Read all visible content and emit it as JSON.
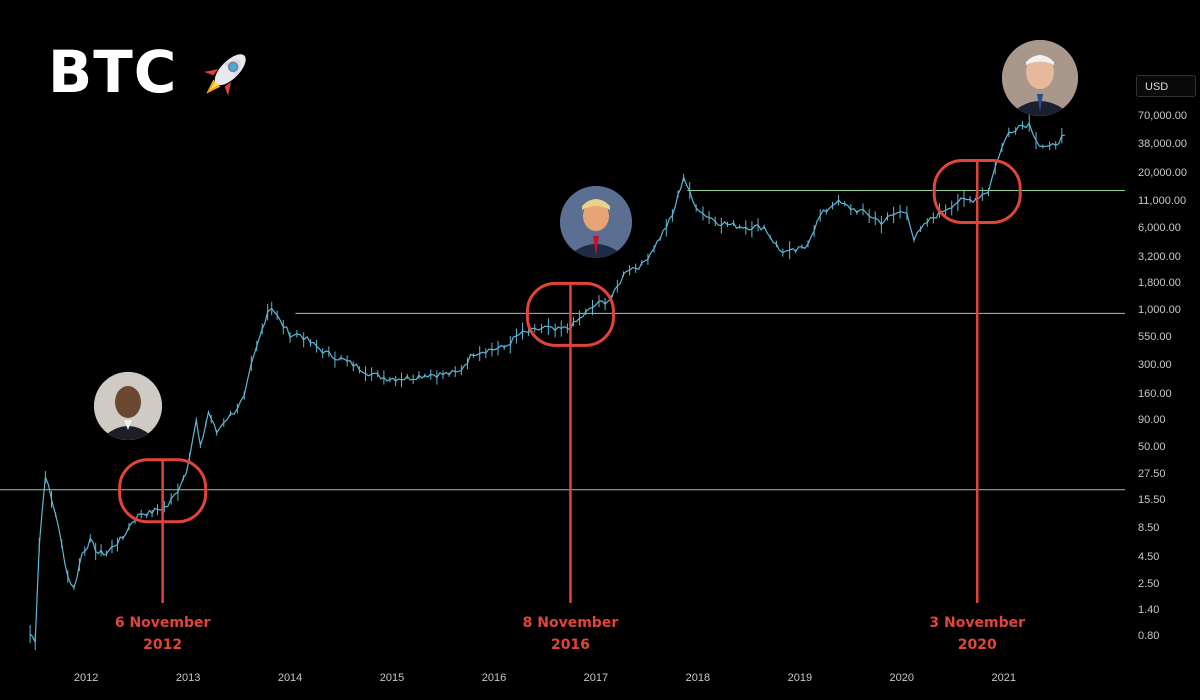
{
  "header": {
    "title": "BTC",
    "rocket_icon": "rocket-icon"
  },
  "currency_label": "USD",
  "colors": {
    "background": "#000000",
    "price": "#5fb8d6",
    "support": "#8fd18c",
    "marker": "#e0443a"
  },
  "chart_data": {
    "type": "line",
    "title": "BTC",
    "y_scale": "log",
    "ylabel": "USD",
    "ylim": [
      0.6,
      95000
    ],
    "xlim": [
      2011.5,
      2021.75
    ],
    "y_ticks": [
      "70,000.00",
      "38,000.00",
      "20,000.00",
      "11,000.00",
      "6,000.00",
      "3,200.00",
      "1,800.00",
      "1,000.00",
      "550.00",
      "300.00",
      "160.00",
      "90.00",
      "50.00",
      "27.50",
      "15.50",
      "8.50",
      "4.50",
      "2.50",
      "1.40",
      "0.80"
    ],
    "x_ticks": [
      "2012",
      "2013",
      "2014",
      "2015",
      "2016",
      "2017",
      "2018",
      "2019",
      "2020",
      "2021"
    ],
    "series": [
      {
        "x": [
          2011.55,
          2011.6,
          2011.64,
          2011.7,
          2011.76,
          2011.8,
          2011.86,
          2011.92,
          2011.98,
          2012.06,
          2012.14,
          2012.22,
          2012.3,
          2012.38,
          2012.46,
          2012.55,
          2012.64,
          2012.72,
          2012.8,
          2012.9,
          2013.0,
          2013.08,
          2013.18,
          2013.22,
          2013.3,
          2013.38,
          2013.45,
          2013.55,
          2013.65,
          2013.72,
          2013.8,
          2013.88,
          2013.92,
          2014.0,
          2014.1,
          2014.2,
          2014.3,
          2014.45,
          2014.6,
          2014.75,
          2014.9,
          2015.05,
          2015.25,
          2015.45,
          2015.6,
          2015.75,
          2015.9,
          2016.05,
          2016.2,
          2016.35,
          2016.5,
          2016.6,
          2016.7,
          2016.85,
          2017.0,
          2017.1,
          2017.25,
          2017.4,
          2017.55,
          2017.7,
          2017.85,
          2017.96,
          2018.05,
          2018.15,
          2018.3,
          2018.45,
          2018.6,
          2018.75,
          2018.9,
          2019.0,
          2019.15,
          2019.3,
          2019.45,
          2019.6,
          2019.75,
          2019.9,
          2020.05,
          2020.15,
          2020.22,
          2020.35,
          2020.5,
          2020.65,
          2020.8,
          2020.95,
          2021.05,
          2021.15,
          2021.25,
          2021.35,
          2021.45,
          2021.55,
          2021.7
        ],
        "y": [
          0.85,
          0.75,
          6,
          28,
          16,
          12,
          6,
          3,
          2.3,
          5,
          6.5,
          5,
          5,
          6,
          7,
          10,
          12,
          12,
          13,
          14,
          20,
          30,
          90,
          50,
          110,
          70,
          90,
          110,
          150,
          300,
          550,
          1000,
          1100,
          800,
          600,
          600,
          500,
          400,
          350,
          300,
          250,
          230,
          230,
          250,
          250,
          260,
          400,
          430,
          450,
          600,
          650,
          700,
          650,
          700,
          950,
          1150,
          1300,
          2500,
          2700,
          4500,
          8000,
          19000,
          11000,
          8500,
          7000,
          6500,
          6300,
          6300,
          3800,
          3600,
          4000,
          8000,
          11000,
          9500,
          8500,
          7000,
          8500,
          9000,
          4800,
          7000,
          9000,
          11000,
          11500,
          14000,
          30000,
          50000,
          58000,
          60000,
          38000,
          35000,
          47000
        ]
      }
    ],
    "annotations": [
      {
        "date": "6 November",
        "year": "2012",
        "x": 2012.85,
        "level": 20
      },
      {
        "date": "8 November",
        "year": "2016",
        "x": 2016.85,
        "level": 950
      },
      {
        "date": "3 November",
        "year": "2020",
        "x": 2020.84,
        "level": 14000
      }
    ]
  }
}
